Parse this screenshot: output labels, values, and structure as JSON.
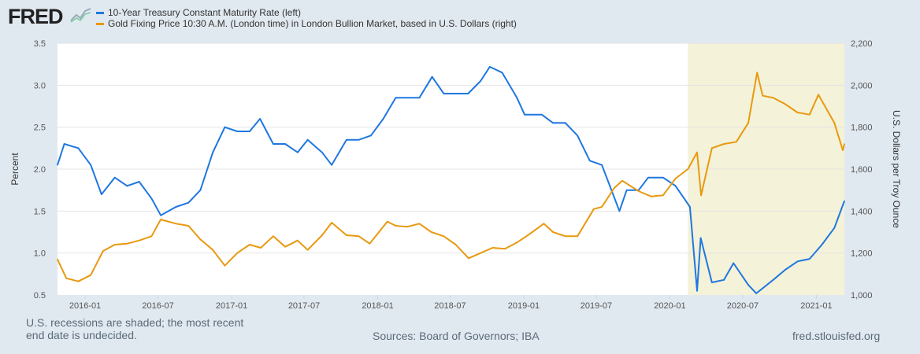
{
  "logo": "FRED",
  "legend": [
    {
      "label": "10-Year Treasury Constant Maturity Rate (left)",
      "color": "#1f77e0"
    },
    {
      "label": "Gold Fixing Price 10:30 A.M. (London time) in London Bullion Market, based in U.S. Dollars (right)",
      "color": "#e8990f"
    }
  ],
  "footer": {
    "recession_note_1": "U.S. recessions are shaded; the most recent",
    "recession_note_2": "end date is undecided.",
    "sources": "Sources: Board of Governors; IBA",
    "site": "fred.stlouisfed.org"
  },
  "chart_data": {
    "type": "line",
    "xlim": [
      "2015-10-24",
      "2021-03-12"
    ],
    "x_ticks": [
      "2016-01",
      "2016-07",
      "2017-01",
      "2017-07",
      "2018-01",
      "2018-07",
      "2019-01",
      "2019-07",
      "2020-01",
      "2020-07",
      "2021-01"
    ],
    "ylabel_left": "Percent",
    "ylim_left": [
      0.5,
      3.5
    ],
    "yticks_left": [
      "0.5",
      "1.0",
      "1.5",
      "2.0",
      "2.5",
      "3.0",
      "3.5"
    ],
    "ylabel_right": "U.S. Dollars per Troy Ounce",
    "ylim_right": [
      1000,
      2200
    ],
    "yticks_right": [
      "1,000",
      "1,200",
      "1,400",
      "1,600",
      "1,800",
      "2,000",
      "2,200"
    ],
    "grid": true,
    "recession_shading": {
      "start": "2020-02-15",
      "end": "2021-03-12",
      "color": "#f4f2d8"
    },
    "series": [
      {
        "name": "10-Year Treasury Constant Maturity Rate (left)",
        "axis": "left",
        "color": "#1f77e0",
        "x": [
          "2015-10-24",
          "2015-11-10",
          "2015-12-15",
          "2016-01-15",
          "2016-02-11",
          "2016-03-15",
          "2016-04-15",
          "2016-05-15",
          "2016-06-15",
          "2016-07-08",
          "2016-08-15",
          "2016-09-15",
          "2016-10-15",
          "2016-11-15",
          "2016-12-15",
          "2017-01-15",
          "2017-02-15",
          "2017-03-13",
          "2017-04-15",
          "2017-05-15",
          "2017-06-15",
          "2017-07-10",
          "2017-08-15",
          "2017-09-08",
          "2017-10-15",
          "2017-11-15",
          "2017-12-15",
          "2018-01-15",
          "2018-02-15",
          "2018-03-15",
          "2018-04-15",
          "2018-05-17",
          "2018-06-15",
          "2018-07-15",
          "2018-08-15",
          "2018-09-15",
          "2018-10-08",
          "2018-11-08",
          "2018-12-15",
          "2019-01-03",
          "2019-02-15",
          "2019-03-15",
          "2019-04-15",
          "2019-05-15",
          "2019-06-15",
          "2019-07-15",
          "2019-08-28",
          "2019-09-15",
          "2019-10-15",
          "2019-11-08",
          "2019-12-15",
          "2020-01-15",
          "2020-02-20",
          "2020-03-09",
          "2020-03-18",
          "2020-04-15",
          "2020-05-15",
          "2020-06-08",
          "2020-07-15",
          "2020-08-04",
          "2020-09-15",
          "2020-10-15",
          "2020-11-15",
          "2020-12-15",
          "2021-01-15",
          "2021-02-15",
          "2021-03-12"
        ],
        "values": [
          2.05,
          2.3,
          2.25,
          2.05,
          1.7,
          1.9,
          1.8,
          1.85,
          1.65,
          1.45,
          1.55,
          1.6,
          1.75,
          2.2,
          2.5,
          2.45,
          2.45,
          2.6,
          2.3,
          2.3,
          2.2,
          2.35,
          2.2,
          2.05,
          2.35,
          2.35,
          2.4,
          2.6,
          2.85,
          2.85,
          2.85,
          3.1,
          2.9,
          2.9,
          2.9,
          3.05,
          3.22,
          3.15,
          2.85,
          2.65,
          2.65,
          2.55,
          2.55,
          2.4,
          2.1,
          2.05,
          1.5,
          1.75,
          1.75,
          1.9,
          1.9,
          1.8,
          1.55,
          0.55,
          1.18,
          0.65,
          0.68,
          0.88,
          0.62,
          0.52,
          0.68,
          0.8,
          0.9,
          0.93,
          1.1,
          1.3,
          1.62
        ]
      },
      {
        "name": "Gold Fixing Price 10:30 A.M. (London time) in London Bullion Market, based in U.S. Dollars (right)",
        "axis": "right",
        "color": "#e8990f",
        "x": [
          "2015-10-24",
          "2015-11-15",
          "2015-12-15",
          "2016-01-15",
          "2016-02-15",
          "2016-03-15",
          "2016-04-15",
          "2016-05-15",
          "2016-06-15",
          "2016-07-08",
          "2016-08-15",
          "2016-09-15",
          "2016-10-15",
          "2016-11-15",
          "2016-12-15",
          "2017-01-15",
          "2017-02-15",
          "2017-03-15",
          "2017-04-15",
          "2017-05-15",
          "2017-06-15",
          "2017-07-10",
          "2017-08-15",
          "2017-09-08",
          "2017-10-15",
          "2017-11-15",
          "2017-12-12",
          "2018-01-25",
          "2018-02-15",
          "2018-03-15",
          "2018-04-15",
          "2018-05-15",
          "2018-06-15",
          "2018-07-15",
          "2018-08-16",
          "2018-09-15",
          "2018-10-15",
          "2018-11-15",
          "2018-12-15",
          "2019-01-15",
          "2019-02-20",
          "2019-03-15",
          "2019-04-15",
          "2019-05-15",
          "2019-06-25",
          "2019-07-15",
          "2019-08-15",
          "2019-09-04",
          "2019-10-15",
          "2019-11-15",
          "2019-12-15",
          "2020-01-15",
          "2020-02-15",
          "2020-03-09",
          "2020-03-19",
          "2020-04-15",
          "2020-05-15",
          "2020-06-15",
          "2020-07-15",
          "2020-08-06",
          "2020-08-20",
          "2020-09-15",
          "2020-10-15",
          "2020-11-15",
          "2020-12-15",
          "2021-01-06",
          "2021-02-15",
          "2021-03-08",
          "2021-03-12"
        ],
        "values": [
          1170,
          1080,
          1065,
          1095,
          1210,
          1240,
          1245,
          1260,
          1280,
          1360,
          1340,
          1330,
          1265,
          1215,
          1140,
          1200,
          1240,
          1225,
          1280,
          1230,
          1260,
          1215,
          1285,
          1345,
          1285,
          1280,
          1245,
          1350,
          1330,
          1325,
          1340,
          1300,
          1280,
          1240,
          1175,
          1200,
          1225,
          1220,
          1250,
          1290,
          1340,
          1300,
          1280,
          1280,
          1410,
          1420,
          1510,
          1545,
          1495,
          1470,
          1475,
          1555,
          1600,
          1680,
          1475,
          1700,
          1720,
          1730,
          1820,
          2060,
          1950,
          1940,
          1910,
          1870,
          1860,
          1955,
          1820,
          1690,
          1720
        ]
      }
    ]
  }
}
